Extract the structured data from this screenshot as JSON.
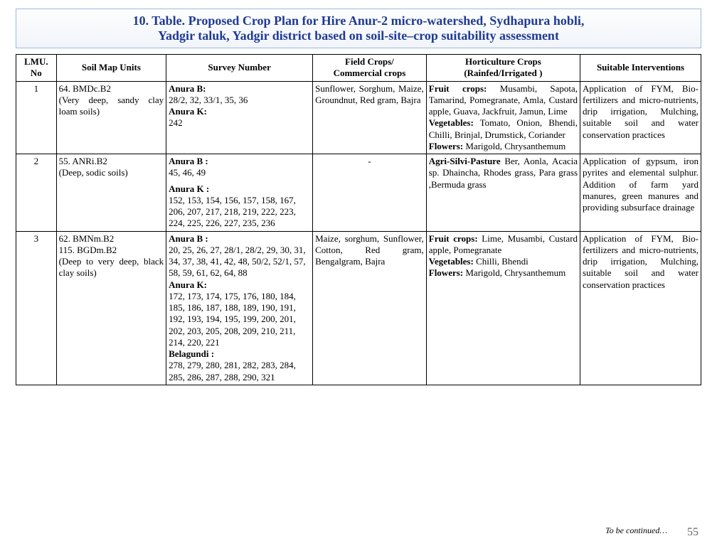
{
  "title": {
    "line1": "10. Table. Proposed Crop Plan for Hire Anur-2 micro-watershed, Sydhapura hobli,",
    "line2": "Yadgir taluk, Yadgir district based on soil-site–crop suitability assessment"
  },
  "columns": {
    "c0": "LMU. No",
    "c1": "Soil Map Units",
    "c2": "Survey Number",
    "c3a": "Field Crops/",
    "c3b": "Commercial crops",
    "c4a": "Horticulture Crops",
    "c4b": "(Rainfed/Irrigated )",
    "c5": "Suitable Interventions"
  },
  "rows": [
    {
      "lmu": "1",
      "soil_a": "64. BMDc.B2",
      "soil_b": "(Very deep, sandy clay loam soils)",
      "survey_a": "Anura B:",
      "survey_b": "28/2, 32, 33/1, 35, 36",
      "survey_c": "Anura K:",
      "survey_d": "242",
      "field": "Sunflower, Sorghum, Maize, Groundnut, Red gram, Bajra",
      "hort_fruit_lbl": "Fruit crops:",
      "hort_fruit": " Musambi, Sapota, Tamarind, Pomegranate, Amla, Custard apple, Guava, Jackfruit, Jamun, Lime",
      "hort_veg_lbl": "Vegetables:",
      "hort_veg": " Tomato, Onion, Bhendi, Chilli, Brinjal, Drumstick, Coriander",
      "hort_flw_lbl": "Flowers:",
      "hort_flw": " Marigold, Chrysanthemum",
      "interv": "Application of FYM, Bio-fertilizers and micro-nutrients, drip irrigation, Mulching, suitable soil and water conservation practices"
    },
    {
      "lmu": "2",
      "soil_a": "55. ANRi.B2",
      "soil_b": "(Deep, sodic soils)",
      "survey_a": "Anura B :",
      "survey_b": "45, 46, 49",
      "survey_c": "Anura K :",
      "survey_d": "152, 153, 154, 156, 157, 158, 167, 206, 207, 217, 218, 219, 222, 223, 224, 225, 226, 227, 235, 236",
      "field": "-",
      "hort_lbl": "Agri-Silvi-Pasture",
      "hort_txt": " Ber, Aonla, Acacia sp. Dhaincha, Rhodes grass, Para grass ,Bermuda grass",
      "interv": "Application of gypsum, iron pyrites and elemental sulphur. Addition of farm yard manures, green manures and providing subsurface drainage"
    },
    {
      "lmu": "3",
      "soil_a": "62. BMNm.B2",
      "soil_b": "115. BGDm.B2",
      "soil_c": "(Deep to very deep, black clay soils)",
      "survey_a": "Anura B :",
      "survey_b": "20, 25, 26, 27, 28/1, 28/2, 29, 30, 31, 34, 37, 38, 41, 42, 48, 50/2, 52/1, 57, 58, 59, 61, 62, 64, 88",
      "survey_c": "Anura K:",
      "survey_d": "172, 173, 174, 175, 176, 180, 184, 185, 186, 187, 188, 189, 190, 191, 192, 193, 194, 195, 199, 200, 201, 202, 203, 205, 208, 209, 210, 211, 214, 220, 221",
      "survey_e": "Belagundi :",
      "survey_f": "278, 279, 280, 281, 282, 283, 284, 285, 286, 287, 288, 290, 321",
      "field": "Maize, sorghum, Sunflower, Cotton, Red gram, Bengalgram, Bajra",
      "hort_fruit_lbl": "Fruit crops:",
      "hort_fruit": " Lime, Musambi, Custard apple, Pomegranate",
      "hort_veg_lbl": "Vegetables:",
      "hort_veg": " Chilli, Bhendi",
      "hort_flw_lbl": "Flowers:",
      "hort_flw": " Marigold, Chrysanthemum",
      "interv": "Application of FYM, Bio-fertilizers and micro-nutrients, drip irrigation, Mulching, suitable soil and water conservation practices"
    }
  ],
  "footer": "To be continued…",
  "page": "55"
}
